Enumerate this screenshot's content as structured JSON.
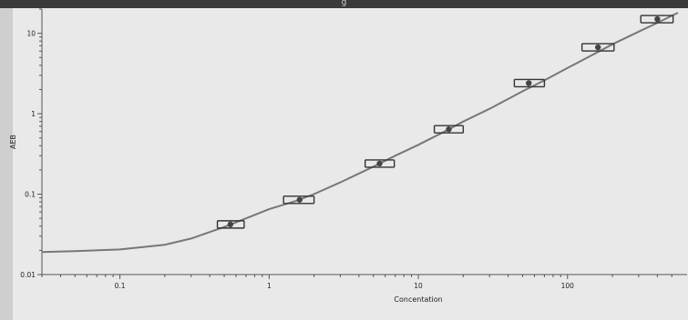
{
  "window": {
    "title": "g"
  },
  "chart_data": {
    "type": "scatter",
    "xlabel": "Concentation",
    "ylabel": "AEB",
    "xscale": "log",
    "yscale": "log",
    "xlim": [
      0.03,
      550
    ],
    "ylim": [
      0.01,
      20
    ],
    "x_ticks": [
      0.1,
      1,
      10,
      100
    ],
    "x_tick_labels": [
      "0.1",
      "1",
      "10",
      "100"
    ],
    "y_ticks": [
      0.01,
      0.1,
      1,
      10
    ],
    "y_tick_labels": [
      "0.01",
      "0.1",
      "1",
      "10"
    ],
    "series": [
      {
        "marker": "point with horizontal error bars",
        "x": [
          0.55,
          1.6,
          5.5,
          16,
          55,
          160,
          400
        ],
        "y": [
          0.042,
          0.085,
          0.24,
          0.64,
          2.4,
          6.7,
          15
        ],
        "x_error_low": [
          0.45,
          1.25,
          4.4,
          12.8,
          44,
          125,
          310
        ],
        "x_error_high": [
          0.68,
          2.0,
          6.9,
          20,
          70,
          205,
          510
        ]
      },
      {
        "marker": "fitted curve",
        "curve": {
          "x": [
            0.03,
            0.05,
            0.1,
            0.2,
            0.3,
            0.5,
            0.7,
            1,
            1.5,
            2,
            3,
            5,
            7,
            10,
            15,
            20,
            30,
            50,
            70,
            100,
            150,
            200,
            300,
            400,
            550
          ],
          "y": [
            0.019,
            0.0195,
            0.0205,
            0.0235,
            0.028,
            0.039,
            0.05,
            0.065,
            0.082,
            0.1,
            0.14,
            0.22,
            0.3,
            0.41,
            0.6,
            0.8,
            1.15,
            1.9,
            2.6,
            3.7,
            5.5,
            7.3,
            10.5,
            13.5,
            18
          ]
        }
      }
    ],
    "grid": false,
    "legend": false,
    "colors": {
      "background": "#e9e9e9",
      "curve": "#777777",
      "points": "#444444"
    }
  }
}
